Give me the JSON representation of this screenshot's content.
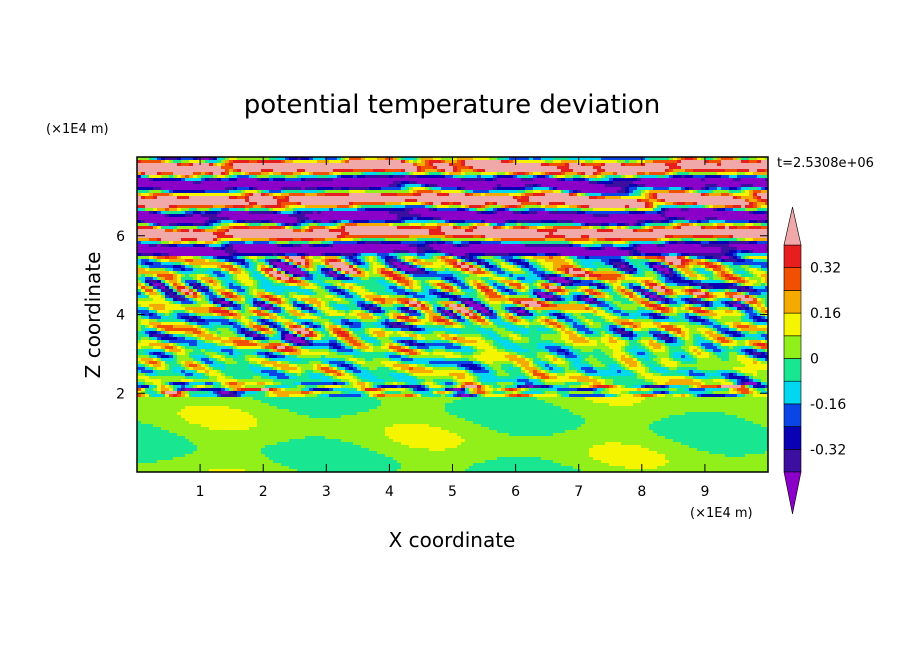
{
  "chart_data": {
    "type": "heatmap",
    "title": "potential temperature deviation",
    "xlabel": "X coordinate",
    "ylabel": "Z coordinate",
    "x_unit": "(×1E4 m)",
    "y_unit": "(×1E4 m)",
    "time_label": "t=2.5308e+06",
    "xlim": [
      0,
      10
    ],
    "ylim": [
      0,
      8
    ],
    "x_ticks": [
      1,
      2,
      3,
      4,
      5,
      6,
      7,
      8,
      9
    ],
    "y_ticks": [
      2,
      4,
      6
    ],
    "colorbar": {
      "levels": [
        -0.4,
        -0.32,
        -0.24,
        -0.16,
        -0.08,
        0,
        0.08,
        0.16,
        0.24,
        0.32,
        0.4
      ],
      "colors": [
        "#8a00c8",
        "#3c0fa0",
        "#0a00b4",
        "#0a46e6",
        "#00d7f0",
        "#19e691",
        "#91f019",
        "#f5f500",
        "#f5aa00",
        "#f05000",
        "#e61e1e",
        "#f0a8a8"
      ],
      "tick_labels": [
        "0.32",
        "0.16",
        "0",
        "-0.16",
        "-0.32"
      ],
      "tick_values": [
        0.32,
        0.16,
        0,
        -0.16,
        -0.32
      ]
    },
    "field_description": "Stratified bands: near-zero (green) below z≈2, turbulent mixed layer 2–5.5, alternating strong positive/negative layers above 5.5"
  }
}
